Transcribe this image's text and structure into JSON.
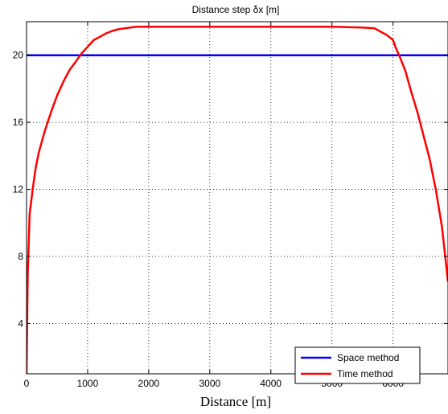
{
  "chart_data": {
    "type": "line",
    "title": "Distance step δx [m]",
    "xlabel": "Distance [m]",
    "ylabel": "",
    "xlim": [
      0,
      6900
    ],
    "ylim": [
      1,
      22
    ],
    "x_ticks": [
      0,
      1000,
      2000,
      3000,
      4000,
      5000,
      6000
    ],
    "y_ticks": [
      4,
      8,
      12,
      16,
      20
    ],
    "grid": true,
    "legend_position": "bottom-right",
    "series": [
      {
        "name": "Space method",
        "color": "#0000ff",
        "x": [
          0,
          6900
        ],
        "y": [
          20,
          20
        ]
      },
      {
        "name": "Time method",
        "color": "#ff0000",
        "x": [
          0,
          20,
          50,
          100,
          150,
          200,
          300,
          400,
          500,
          600,
          700,
          800,
          900,
          1000,
          1100,
          1200,
          1300,
          1400,
          1500,
          1600,
          1700,
          1800,
          2000,
          2500,
          3000,
          3500,
          4000,
          4500,
          5000,
          5500,
          5700,
          5800,
          5900,
          6000,
          6050,
          6100,
          6200,
          6300,
          6400,
          6500,
          6600,
          6700,
          6800,
          6900
        ],
        "y": [
          1,
          7,
          10.5,
          12,
          13.3,
          14.2,
          15.5,
          16.6,
          17.6,
          18.4,
          19.1,
          19.6,
          20.1,
          20.5,
          20.9,
          21.1,
          21.3,
          21.45,
          21.55,
          21.6,
          21.65,
          21.7,
          21.7,
          21.7,
          21.7,
          21.7,
          21.7,
          21.7,
          21.7,
          21.65,
          21.6,
          21.4,
          21.2,
          20.9,
          20.4,
          20.0,
          19.1,
          17.8,
          16.6,
          15.2,
          13.8,
          12.0,
          9.8,
          6.5
        ]
      }
    ]
  }
}
